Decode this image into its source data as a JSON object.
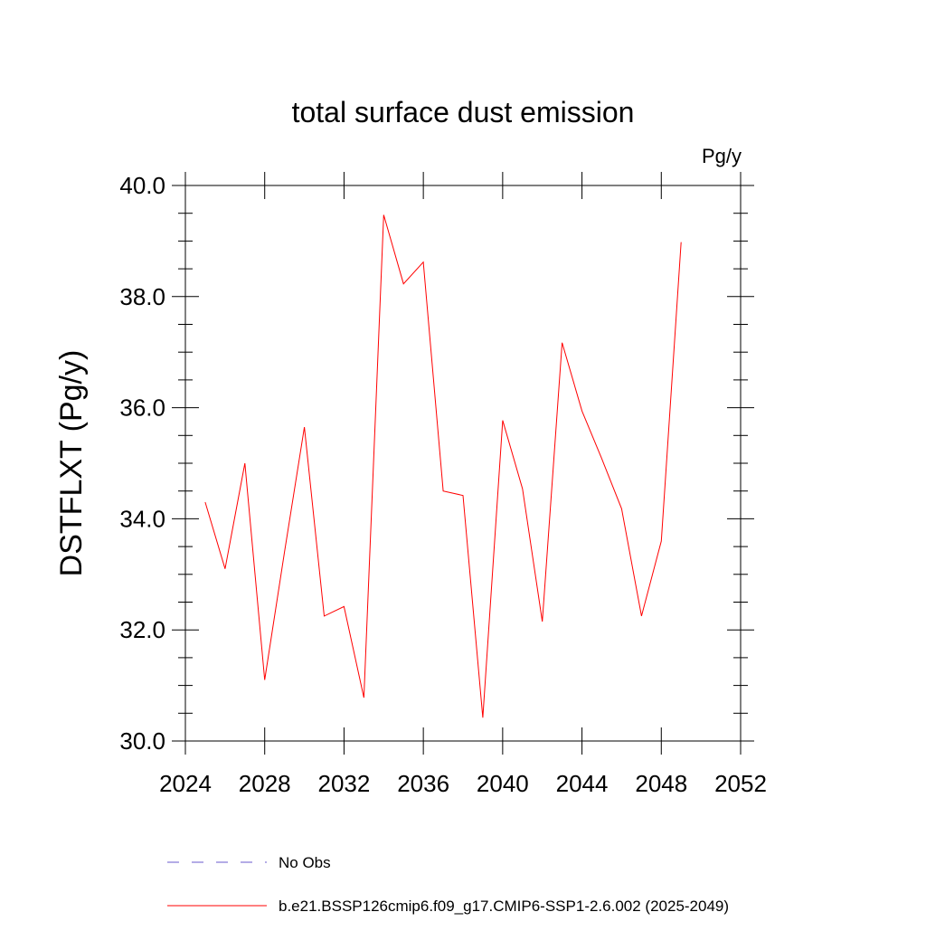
{
  "chart_data": {
    "type": "line",
    "title": "total surface dust emission",
    "units_label": "Pg/y",
    "ylabel": "DSTFLXT  (Pg/y)",
    "xlabel": "",
    "xlim": [
      2024,
      2052
    ],
    "ylim": [
      30.0,
      40.0
    ],
    "x_ticks": [
      2024,
      2028,
      2032,
      2036,
      2040,
      2044,
      2048,
      2052
    ],
    "x_tick_labels": [
      "2024",
      "2028",
      "2032",
      "2036",
      "2040",
      "2044",
      "2048",
      "2052"
    ],
    "y_ticks": [
      30.0,
      32.0,
      34.0,
      36.0,
      38.0,
      40.0
    ],
    "y_tick_labels": [
      "30.0",
      "32.0",
      "34.0",
      "36.0",
      "38.0",
      "40.0"
    ],
    "grid": false,
    "legend_position": "bottom",
    "series": [
      {
        "name": "b.e21.BSSP126cmip6.f09_g17.CMIP6-SSP1-2.6.002 (2025-2049)",
        "color": "#ff0000",
        "style": "solid",
        "x": [
          2025,
          2026,
          2027,
          2028,
          2029,
          2030,
          2031,
          2032,
          2033,
          2034,
          2035,
          2036,
          2037,
          2038,
          2039,
          2040,
          2041,
          2042,
          2043,
          2044,
          2045,
          2046,
          2047,
          2048,
          2049
        ],
        "y": [
          34.3,
          33.1,
          35.0,
          31.1,
          33.4,
          35.65,
          32.25,
          32.42,
          30.78,
          39.47,
          38.23,
          38.62,
          34.5,
          34.42,
          30.42,
          35.77,
          34.54,
          32.15,
          37.17,
          35.94,
          35.08,
          34.18,
          32.25,
          33.6,
          38.98
        ]
      }
    ],
    "legend": [
      {
        "label": "No Obs",
        "color": "#6a5acd",
        "style": "dashed"
      },
      {
        "label": "b.e21.BSSP126cmip6.f09_g17.CMIP6-SSP1-2.6.002 (2025-2049)",
        "color": "#ff0000",
        "style": "solid"
      }
    ]
  }
}
